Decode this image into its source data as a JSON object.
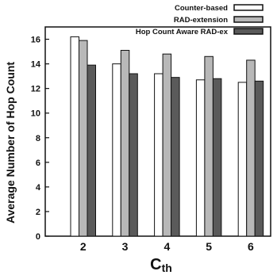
{
  "chart_data": {
    "type": "bar",
    "categories": [
      "2",
      "3",
      "4",
      "5",
      "6"
    ],
    "series": [
      {
        "name": "Counter-based",
        "values": [
          16.2,
          14.0,
          13.2,
          12.7,
          12.5
        ]
      },
      {
        "name": "RAD-extension",
        "values": [
          15.9,
          15.1,
          14.8,
          14.6,
          14.3
        ]
      },
      {
        "name": "Hop Count Aware RAD-ex",
        "values": [
          13.9,
          13.2,
          12.9,
          12.8,
          12.6
        ]
      }
    ],
    "ylabel": "Average Number of Hop Count",
    "xlabel": {
      "main": "C",
      "sub": "th"
    },
    "ylim": [
      0,
      17
    ],
    "yticks": [
      "0",
      "2",
      "4",
      "6",
      "8",
      "10",
      "12",
      "14",
      "16"
    ],
    "legend_position": "top-right",
    "grid": false,
    "colors": {
      "series": [
        "#ffffff",
        "#b8b8b8",
        "#5a5a5a"
      ],
      "stroke": "#111111"
    }
  }
}
